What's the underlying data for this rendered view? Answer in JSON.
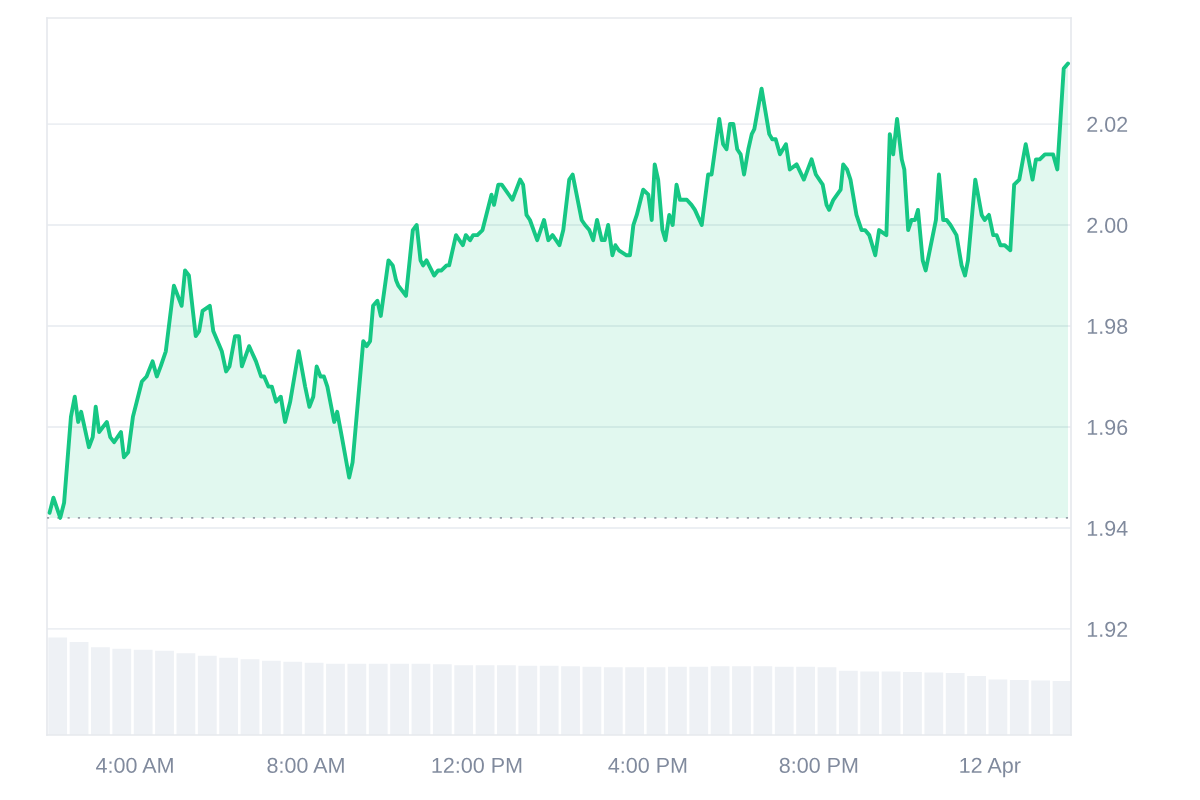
{
  "chart_data": {
    "type": "area",
    "xlim": [
      1.94,
      25.9
    ],
    "ylim": [
      1.899,
      2.041
    ],
    "xticks": [
      {
        "value": 4,
        "label": "4:00 AM"
      },
      {
        "value": 8,
        "label": "8:00 AM"
      },
      {
        "value": 12,
        "label": "12:00 PM"
      },
      {
        "value": 16,
        "label": "4:00 PM"
      },
      {
        "value": 20,
        "label": "8:00 PM"
      },
      {
        "value": 24,
        "label": "12 Apr"
      }
    ],
    "yticks": [
      1.92,
      1.94,
      1.96,
      1.98,
      {
        "value": 2,
        "label": "2.00"
      },
      2.02
    ],
    "grid": "y",
    "line_style": "solid",
    "ref_lines": [
      {
        "axis": "y",
        "value": 1.942,
        "color": "#9aa1ab",
        "line_style": "dotted"
      }
    ],
    "series": [
      {
        "type": "bar",
        "color": "#eef1f5",
        "x": [
          2.19,
          2.69,
          3.19,
          3.69,
          4.19,
          4.69,
          5.19,
          5.69,
          6.19,
          6.69,
          7.19,
          7.69,
          8.19,
          8.69,
          9.19,
          9.69,
          10.19,
          10.69,
          11.19,
          11.69,
          12.19,
          12.69,
          13.19,
          13.69,
          14.19,
          14.69,
          15.19,
          15.69,
          16.19,
          16.69,
          17.19,
          17.69,
          18.19,
          18.69,
          19.19,
          19.69,
          20.19,
          20.69,
          21.19,
          21.69,
          22.19,
          22.69,
          23.19,
          23.69,
          24.19,
          24.69,
          25.19,
          25.69
        ],
        "values": [
          1.9183,
          1.9174,
          1.9164,
          1.9161,
          1.9159,
          1.9157,
          1.9152,
          1.9147,
          1.9143,
          1.914,
          1.9137,
          1.9135,
          1.9133,
          1.9131,
          1.9131,
          1.9131,
          1.9131,
          1.9131,
          1.913,
          1.9128,
          1.9128,
          1.9128,
          1.9127,
          1.9127,
          1.9126,
          1.9125,
          1.9124,
          1.9124,
          1.9124,
          1.9125,
          1.9125,
          1.9126,
          1.9126,
          1.9126,
          1.9125,
          1.9125,
          1.9124,
          1.9117,
          1.9116,
          1.9116,
          1.9115,
          1.9114,
          1.9113,
          1.9107,
          1.91,
          1.9099,
          1.9098,
          1.9097
        ]
      },
      {
        "color": "#16c784",
        "x": [
          2.0,
          2.09,
          2.25,
          2.34,
          2.5,
          2.59,
          2.67,
          2.74,
          2.92,
          3.01,
          3.08,
          3.16,
          3.34,
          3.42,
          3.51,
          3.67,
          3.74,
          3.84,
          3.95,
          4.04,
          4.16,
          4.27,
          4.41,
          4.51,
          4.6,
          4.72,
          4.91,
          5.09,
          5.17,
          5.26,
          5.42,
          5.5,
          5.58,
          5.75,
          5.83,
          6.03,
          6.13,
          6.21,
          6.34,
          6.43,
          6.5,
          6.67,
          6.83,
          6.95,
          7.02,
          7.12,
          7.2,
          7.3,
          7.41,
          7.51,
          7.63,
          7.83,
          7.98,
          8.08,
          8.17,
          8.25,
          8.34,
          8.42,
          8.5,
          8.66,
          8.73,
          8.84,
          9.01,
          9.09,
          9.34,
          9.42,
          9.5,
          9.57,
          9.67,
          9.75,
          9.93,
          10.03,
          10.11,
          10.16,
          10.34,
          10.5,
          10.59,
          10.68,
          10.74,
          10.82,
          11.0,
          11.09,
          11.17,
          11.29,
          11.35,
          11.51,
          11.67,
          11.74,
          11.84,
          11.91,
          12.01,
          12.13,
          12.34,
          12.4,
          12.5,
          12.58,
          12.83,
          13.01,
          13.08,
          13.16,
          13.24,
          13.41,
          13.57,
          13.67,
          13.77,
          13.93,
          14.02,
          14.16,
          14.24,
          14.45,
          14.53,
          14.63,
          14.72,
          14.81,
          14.92,
          14.99,
          15.07,
          15.17,
          15.24,
          15.32,
          15.5,
          15.58,
          15.66,
          15.74,
          15.89,
          16.01,
          16.09,
          16.16,
          16.24,
          16.34,
          16.41,
          16.5,
          16.58,
          16.67,
          16.75,
          16.91,
          17.02,
          17.1,
          17.26,
          17.41,
          17.49,
          17.67,
          17.76,
          17.84,
          17.92,
          18.0,
          18.09,
          18.17,
          18.25,
          18.35,
          18.43,
          18.49,
          18.66,
          18.84,
          18.91,
          18.99,
          19.09,
          19.23,
          19.32,
          19.48,
          19.65,
          19.83,
          19.93,
          20.09,
          20.18,
          20.24,
          20.34,
          20.51,
          20.57,
          20.66,
          20.74,
          20.88,
          21.0,
          21.08,
          21.18,
          21.32,
          21.41,
          21.58,
          21.66,
          21.74,
          21.83,
          21.94,
          22.0,
          22.09,
          22.17,
          22.25,
          22.32,
          22.43,
          22.5,
          22.74,
          22.81,
          22.91,
          22.99,
          23.08,
          23.22,
          23.34,
          23.42,
          23.49,
          23.66,
          23.81,
          23.88,
          23.98,
          24.08,
          24.16,
          24.25,
          24.35,
          24.48,
          24.57,
          24.69,
          24.84,
          25.0,
          25.08,
          25.17,
          25.29,
          25.36,
          25.48,
          25.58,
          25.73,
          25.83
        ],
        "values": [
          1.943,
          1.946,
          1.942,
          1.945,
          1.962,
          1.966,
          1.961,
          1.963,
          1.956,
          1.958,
          1.964,
          1.959,
          1.961,
          1.958,
          1.957,
          1.959,
          1.954,
          1.955,
          1.962,
          1.965,
          1.969,
          1.97,
          1.973,
          1.97,
          1.972,
          1.975,
          1.988,
          1.984,
          1.991,
          1.99,
          1.978,
          1.979,
          1.983,
          1.984,
          1.979,
          1.975,
          1.971,
          1.972,
          1.978,
          1.978,
          1.972,
          1.976,
          1.973,
          1.97,
          1.97,
          1.968,
          1.968,
          1.965,
          1.966,
          1.961,
          1.965,
          1.975,
          1.968,
          1.964,
          1.966,
          1.972,
          1.97,
          1.97,
          1.968,
          1.961,
          1.963,
          1.958,
          1.95,
          1.953,
          1.977,
          1.976,
          1.977,
          1.984,
          1.985,
          1.982,
          1.993,
          1.992,
          1.989,
          1.988,
          1.986,
          1.999,
          2.0,
          1.993,
          1.992,
          1.993,
          1.99,
          1.991,
          1.991,
          1.992,
          1.992,
          1.998,
          1.996,
          1.998,
          1.997,
          1.998,
          1.998,
          1.999,
          2.006,
          2.004,
          2.008,
          2.008,
          2.005,
          2.009,
          2.008,
          2.002,
          2.001,
          1.997,
          2.001,
          1.997,
          1.998,
          1.996,
          1.999,
          2.009,
          2.01,
          2.001,
          2.0,
          1.999,
          1.997,
          2.001,
          1.997,
          1.997,
          2.0,
          1.994,
          1.996,
          1.995,
          1.994,
          1.994,
          2.0,
          2.002,
          2.007,
          2.006,
          2.001,
          2.012,
          2.009,
          1.999,
          1.997,
          2.002,
          2.0,
          2.008,
          2.005,
          2.005,
          2.004,
          2.003,
          2.0,
          2.01,
          2.01,
          2.021,
          2.016,
          2.015,
          2.02,
          2.02,
          2.015,
          2.014,
          2.01,
          2.015,
          2.018,
          2.019,
          2.027,
          2.018,
          2.017,
          2.017,
          2.014,
          2.016,
          2.011,
          2.012,
          2.009,
          2.013,
          2.01,
          2.008,
          2.004,
          2.003,
          2.005,
          2.007,
          2.012,
          2.011,
          2.009,
          2.002,
          1.999,
          1.999,
          1.998,
          1.994,
          1.999,
          1.998,
          2.018,
          2.014,
          2.021,
          2.013,
          2.011,
          1.999,
          2.001,
          2.001,
          2.003,
          1.993,
          1.991,
          2.001,
          2.01,
          2.001,
          2.001,
          2.0,
          1.998,
          1.992,
          1.99,
          1.993,
          2.009,
          2.002,
          2.001,
          2.002,
          1.998,
          1.998,
          1.996,
          1.996,
          1.995,
          2.008,
          2.009,
          2.016,
          2.009,
          2.013,
          2.013,
          2.014,
          2.014,
          2.014,
          2.011,
          2.031,
          2.032
        ]
      }
    ]
  }
}
